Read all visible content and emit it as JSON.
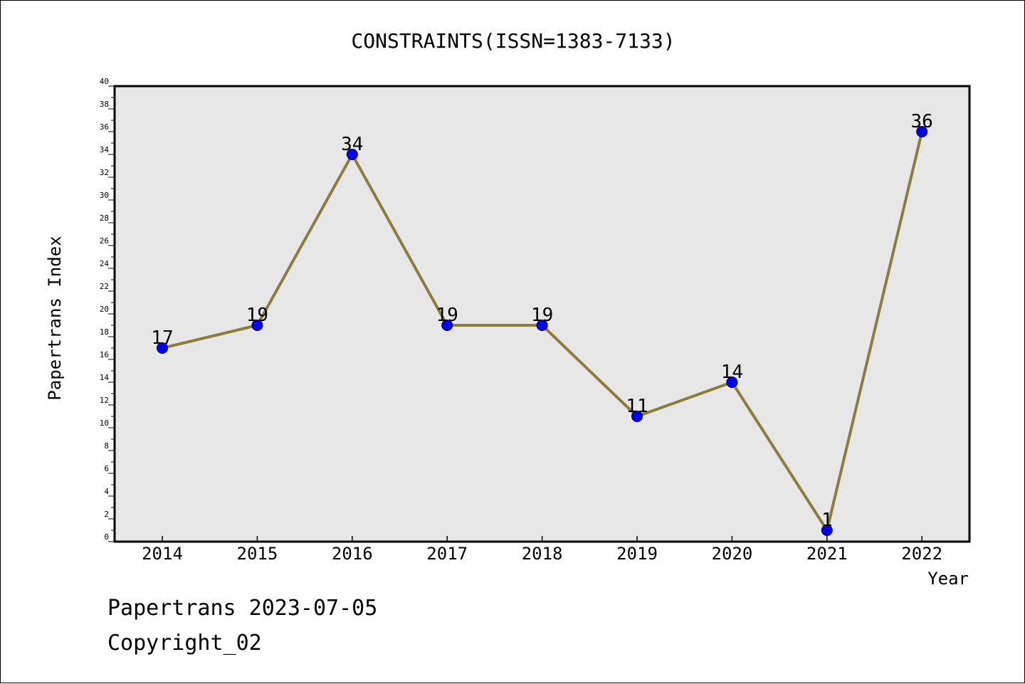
{
  "chart_data": {
    "type": "line",
    "title": "CONSTRAINTS(ISSN=1383-7133)",
    "xlabel": "Year",
    "ylabel": "Papertrans Index",
    "categories": [
      "2014",
      "2015",
      "2016",
      "2017",
      "2018",
      "2019",
      "2020",
      "2021",
      "2022"
    ],
    "values": [
      17,
      19,
      34,
      19,
      19,
      11,
      14,
      1,
      36
    ],
    "ylim": [
      0,
      40
    ],
    "ytick_step": 2,
    "grid": false,
    "data_labels": true,
    "colors": {
      "line": "#8b7d3a",
      "marker": "#0000ff",
      "plot_background": "#e7e7e7"
    }
  },
  "footer": {
    "line1": "Papertrans 2023-07-05",
    "line2": "Copyright_02"
  }
}
